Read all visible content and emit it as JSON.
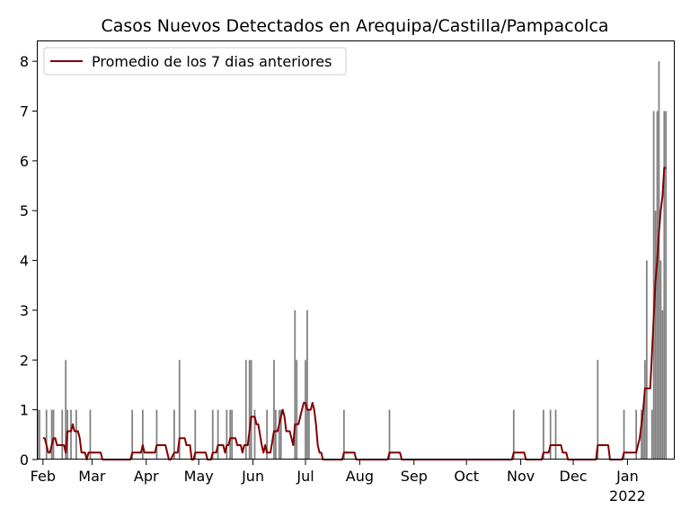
{
  "chart_data": {
    "type": "bar",
    "title": "Casos Nuevos Detectados en Arequipa/Castilla/Pampacolca",
    "xlabel": "",
    "ylabel": "",
    "ylim": [
      0,
      8.4
    ],
    "x_axis": {
      "type": "date",
      "start": "2021-01-29",
      "end": "2022-01-28",
      "ticks": [
        {
          "date": "2021-02-01",
          "label": "Feb"
        },
        {
          "date": "2021-03-01",
          "label": "Mar"
        },
        {
          "date": "2021-04-01",
          "label": "Apr"
        },
        {
          "date": "2021-05-01",
          "label": "May"
        },
        {
          "date": "2021-06-01",
          "label": "Jun"
        },
        {
          "date": "2021-07-01",
          "label": "Jul"
        },
        {
          "date": "2021-08-01",
          "label": "Aug"
        },
        {
          "date": "2021-09-01",
          "label": "Sep"
        },
        {
          "date": "2021-10-01",
          "label": "Oct"
        },
        {
          "date": "2021-11-01",
          "label": "Nov"
        },
        {
          "date": "2021-12-01",
          "label": "Dec"
        },
        {
          "date": "2022-01-01",
          "label": "Jan",
          "sublabel": "2022"
        }
      ]
    },
    "y_axis": {
      "ticks": [
        0,
        1,
        2,
        3,
        4,
        5,
        6,
        7,
        8
      ]
    },
    "grid": false,
    "legend": {
      "placement": "top-left"
    },
    "series": [
      {
        "kind": "bar",
        "color": "#808080",
        "points": [
          [
            "2021-01-29",
            1
          ],
          [
            "2021-01-30",
            1
          ],
          [
            "2021-02-03",
            1
          ],
          [
            "2021-02-06",
            1
          ],
          [
            "2021-02-07",
            1
          ],
          [
            "2021-02-12",
            1
          ],
          [
            "2021-02-14",
            2
          ],
          [
            "2021-02-15",
            1
          ],
          [
            "2021-02-17",
            1
          ],
          [
            "2021-02-20",
            1
          ],
          [
            "2021-02-28",
            1
          ],
          [
            "2021-03-24",
            1
          ],
          [
            "2021-03-30",
            1
          ],
          [
            "2021-04-07",
            1
          ],
          [
            "2021-04-17",
            1
          ],
          [
            "2021-04-20",
            2
          ],
          [
            "2021-04-29",
            1
          ],
          [
            "2021-05-09",
            1
          ],
          [
            "2021-05-12",
            1
          ],
          [
            "2021-05-17",
            1
          ],
          [
            "2021-05-19",
            1
          ],
          [
            "2021-05-20",
            1
          ],
          [
            "2021-05-28",
            2
          ],
          [
            "2021-05-30",
            2
          ],
          [
            "2021-05-31",
            2
          ],
          [
            "2021-06-02",
            1
          ],
          [
            "2021-06-09",
            1
          ],
          [
            "2021-06-13",
            2
          ],
          [
            "2021-06-14",
            1
          ],
          [
            "2021-06-16",
            1
          ],
          [
            "2021-06-17",
            1
          ],
          [
            "2021-06-25",
            3
          ],
          [
            "2021-06-26",
            2
          ],
          [
            "2021-07-01",
            2
          ],
          [
            "2021-07-02",
            3
          ],
          [
            "2021-07-03",
            1
          ],
          [
            "2021-07-23",
            1
          ],
          [
            "2021-08-18",
            1
          ],
          [
            "2021-10-28",
            1
          ],
          [
            "2021-11-14",
            1
          ],
          [
            "2021-11-18",
            1
          ],
          [
            "2021-11-21",
            1
          ],
          [
            "2021-12-15",
            2
          ],
          [
            "2021-12-30",
            1
          ],
          [
            "2022-01-06",
            1
          ],
          [
            "2022-01-09",
            1
          ],
          [
            "2022-01-10",
            1
          ],
          [
            "2022-01-11",
            2
          ],
          [
            "2022-01-12",
            4
          ],
          [
            "2022-01-15",
            1
          ],
          [
            "2022-01-16",
            7
          ],
          [
            "2022-01-17",
            5
          ],
          [
            "2022-01-18",
            7
          ],
          [
            "2022-01-19",
            8
          ],
          [
            "2022-01-20",
            4
          ],
          [
            "2022-01-21",
            3
          ],
          [
            "2022-01-22",
            7
          ],
          [
            "2022-01-23",
            7
          ]
        ]
      },
      {
        "kind": "line",
        "name": "Promedio de los 7 dias anteriores",
        "color": "#800000",
        "points": [
          [
            "2021-02-01",
            0.43
          ],
          [
            "2021-02-02",
            0.43
          ],
          [
            "2021-02-03",
            0.29
          ],
          [
            "2021-02-04",
            0.14
          ],
          [
            "2021-02-05",
            0.14
          ],
          [
            "2021-02-06",
            0.29
          ],
          [
            "2021-02-07",
            0.43
          ],
          [
            "2021-02-08",
            0.43
          ],
          [
            "2021-02-09",
            0.29
          ],
          [
            "2021-02-13",
            0.29
          ],
          [
            "2021-02-14",
            0.14
          ],
          [
            "2021-02-15",
            0.57
          ],
          [
            "2021-02-17",
            0.57
          ],
          [
            "2021-02-18",
            0.71
          ],
          [
            "2021-02-19",
            0.57
          ],
          [
            "2021-02-21",
            0.57
          ],
          [
            "2021-02-22",
            0.43
          ],
          [
            "2021-02-23",
            0.14
          ],
          [
            "2021-02-25",
            0.14
          ],
          [
            "2021-02-26",
            0.0
          ],
          [
            "2021-02-27",
            0.14
          ],
          [
            "2021-03-06",
            0.14
          ],
          [
            "2021-03-07",
            0.0
          ],
          [
            "2021-03-23",
            0.0
          ],
          [
            "2021-03-24",
            0.14
          ],
          [
            "2021-03-29",
            0.14
          ],
          [
            "2021-03-30",
            0.29
          ],
          [
            "2021-03-31",
            0.14
          ],
          [
            "2021-04-06",
            0.14
          ],
          [
            "2021-04-07",
            0.29
          ],
          [
            "2021-04-12",
            0.29
          ],
          [
            "2021-04-13",
            0.14
          ],
          [
            "2021-04-14",
            0.0
          ],
          [
            "2021-04-15",
            0.0
          ],
          [
            "2021-04-17",
            0.14
          ],
          [
            "2021-04-19",
            0.14
          ],
          [
            "2021-04-20",
            0.43
          ],
          [
            "2021-04-23",
            0.43
          ],
          [
            "2021-04-24",
            0.29
          ],
          [
            "2021-04-26",
            0.29
          ],
          [
            "2021-04-27",
            0.0
          ],
          [
            "2021-04-28",
            0.0
          ],
          [
            "2021-04-29",
            0.14
          ],
          [
            "2021-05-05",
            0.14
          ],
          [
            "2021-05-06",
            0.0
          ],
          [
            "2021-05-08",
            0.0
          ],
          [
            "2021-05-09",
            0.14
          ],
          [
            "2021-05-11",
            0.14
          ],
          [
            "2021-05-12",
            0.29
          ],
          [
            "2021-05-15",
            0.29
          ],
          [
            "2021-05-16",
            0.14
          ],
          [
            "2021-05-17",
            0.29
          ],
          [
            "2021-05-18",
            0.29
          ],
          [
            "2021-05-19",
            0.43
          ],
          [
            "2021-05-22",
            0.43
          ],
          [
            "2021-05-23",
            0.29
          ],
          [
            "2021-05-25",
            0.29
          ],
          [
            "2021-05-26",
            0.14
          ],
          [
            "2021-05-27",
            0.29
          ],
          [
            "2021-05-29",
            0.29
          ],
          [
            "2021-05-30",
            0.57
          ],
          [
            "2021-05-31",
            0.86
          ],
          [
            "2021-06-02",
            0.86
          ],
          [
            "2021-06-03",
            0.71
          ],
          [
            "2021-06-04",
            0.71
          ],
          [
            "2021-06-06",
            0.29
          ],
          [
            "2021-06-07",
            0.14
          ],
          [
            "2021-06-08",
            0.29
          ],
          [
            "2021-06-09",
            0.14
          ],
          [
            "2021-06-11",
            0.14
          ],
          [
            "2021-06-13",
            0.57
          ],
          [
            "2021-06-15",
            0.57
          ],
          [
            "2021-06-16",
            0.71
          ],
          [
            "2021-06-17",
            0.86
          ],
          [
            "2021-06-18",
            1.0
          ],
          [
            "2021-06-19",
            0.86
          ],
          [
            "2021-06-20",
            0.57
          ],
          [
            "2021-06-22",
            0.57
          ],
          [
            "2021-06-23",
            0.43
          ],
          [
            "2021-06-24",
            0.29
          ],
          [
            "2021-06-25",
            0.71
          ],
          [
            "2021-06-27",
            0.71
          ],
          [
            "2021-06-28",
            0.86
          ],
          [
            "2021-06-29",
            1.0
          ],
          [
            "2021-06-30",
            1.14
          ],
          [
            "2021-07-01",
            1.14
          ],
          [
            "2021-07-02",
            1.0
          ],
          [
            "2021-07-04",
            1.0
          ],
          [
            "2021-07-05",
            1.14
          ],
          [
            "2021-07-06",
            1.0
          ],
          [
            "2021-07-07",
            0.71
          ],
          [
            "2021-07-08",
            0.29
          ],
          [
            "2021-07-09",
            0.14
          ],
          [
            "2021-07-10",
            0.14
          ],
          [
            "2021-07-11",
            0.0
          ],
          [
            "2021-07-22",
            0.0
          ],
          [
            "2021-07-23",
            0.14
          ],
          [
            "2021-07-29",
            0.14
          ],
          [
            "2021-07-30",
            0.0
          ],
          [
            "2021-08-17",
            0.0
          ],
          [
            "2021-08-18",
            0.14
          ],
          [
            "2021-08-24",
            0.14
          ],
          [
            "2021-08-25",
            0.0
          ],
          [
            "2021-10-27",
            0.0
          ],
          [
            "2021-10-28",
            0.14
          ],
          [
            "2021-11-03",
            0.14
          ],
          [
            "2021-11-04",
            0.0
          ],
          [
            "2021-11-13",
            0.0
          ],
          [
            "2021-11-14",
            0.14
          ],
          [
            "2021-11-17",
            0.14
          ],
          [
            "2021-11-18",
            0.29
          ],
          [
            "2021-11-24",
            0.29
          ],
          [
            "2021-11-25",
            0.14
          ],
          [
            "2021-11-27",
            0.14
          ],
          [
            "2021-11-28",
            0.0
          ],
          [
            "2021-12-14",
            0.0
          ],
          [
            "2021-12-15",
            0.29
          ],
          [
            "2021-12-21",
            0.29
          ],
          [
            "2021-12-22",
            0.0
          ],
          [
            "2021-12-29",
            0.0
          ],
          [
            "2021-12-30",
            0.14
          ],
          [
            "2022-01-05",
            0.14
          ],
          [
            "2022-01-06",
            0.14
          ],
          [
            "2022-01-07",
            0.29
          ],
          [
            "2022-01-08",
            0.43
          ],
          [
            "2022-01-09",
            0.71
          ],
          [
            "2022-01-10",
            1.0
          ],
          [
            "2022-01-11",
            1.43
          ],
          [
            "2022-01-14",
            1.43
          ],
          [
            "2022-01-15",
            2.14
          ],
          [
            "2022-01-16",
            2.86
          ],
          [
            "2022-01-17",
            3.57
          ],
          [
            "2022-01-18",
            4.0
          ],
          [
            "2022-01-19",
            4.57
          ],
          [
            "2022-01-20",
            5.0
          ],
          [
            "2022-01-21",
            5.29
          ],
          [
            "2022-01-22",
            5.86
          ],
          [
            "2022-01-23",
            5.86
          ]
        ]
      }
    ]
  }
}
